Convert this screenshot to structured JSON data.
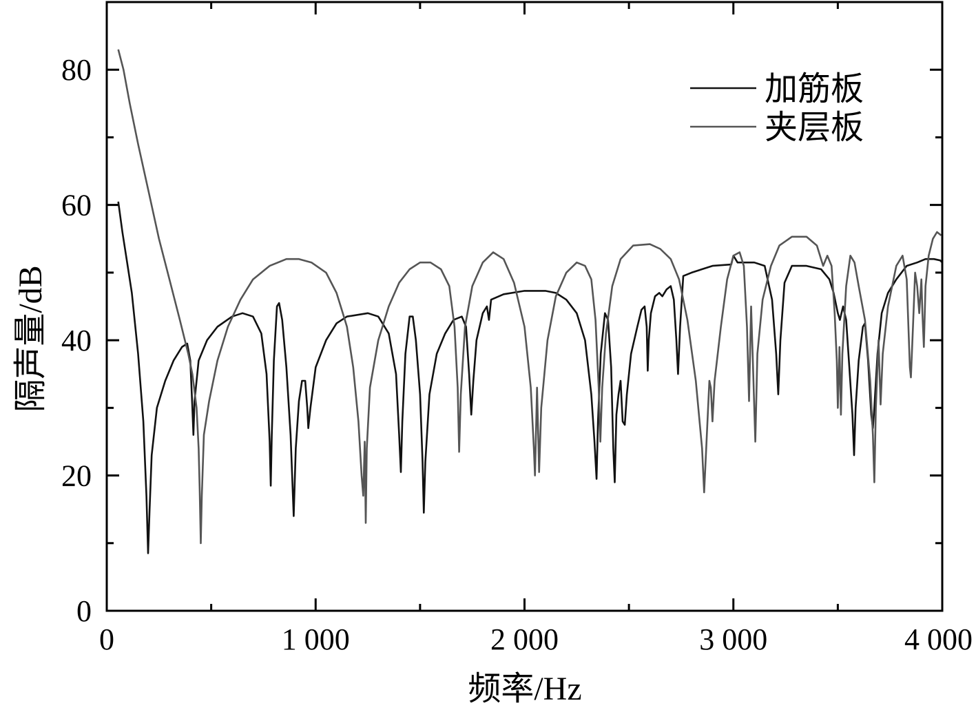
{
  "chart_data": {
    "type": "line",
    "xlabel": "频率/Hz",
    "ylabel": "隔声量/dB",
    "xlim": [
      0,
      4000
    ],
    "ylim": [
      0,
      90
    ],
    "x_ticks": [
      0,
      1000,
      2000,
      3000,
      4000
    ],
    "x_tick_labels": [
      "0",
      "1 000",
      "2 000",
      "3 000",
      "4 000"
    ],
    "y_ticks": [
      0,
      20,
      40,
      60,
      80
    ],
    "y_tick_labels": [
      "0",
      "20",
      "40",
      "60",
      "80"
    ],
    "minor_y_ticks": [
      10,
      30,
      50,
      70
    ],
    "minor_x_ticks": [
      500,
      1500,
      2500,
      3500
    ],
    "grid": false,
    "legend_position": "top-right",
    "series": [
      {
        "name": "加筋板",
        "color": "#111111",
        "points": [
          [
            55,
            60.5
          ],
          [
            75,
            56
          ],
          [
            95,
            52
          ],
          [
            120,
            47
          ],
          [
            150,
            38
          ],
          [
            175,
            28
          ],
          [
            190,
            17
          ],
          [
            198,
            8.5
          ],
          [
            205,
            15
          ],
          [
            215,
            23
          ],
          [
            240,
            30
          ],
          [
            280,
            34
          ],
          [
            320,
            37
          ],
          [
            360,
            39
          ],
          [
            385,
            39.5
          ],
          [
            400,
            37
          ],
          [
            410,
            30
          ],
          [
            415,
            26
          ],
          [
            420,
            31
          ],
          [
            440,
            37
          ],
          [
            480,
            40
          ],
          [
            530,
            42
          ],
          [
            600,
            43.5
          ],
          [
            650,
            44
          ],
          [
            700,
            43.5
          ],
          [
            740,
            41
          ],
          [
            765,
            35
          ],
          [
            780,
            25
          ],
          [
            785,
            18.5
          ],
          [
            790,
            26
          ],
          [
            800,
            37
          ],
          [
            815,
            45
          ],
          [
            825,
            45.5
          ],
          [
            840,
            43
          ],
          [
            860,
            36
          ],
          [
            880,
            26
          ],
          [
            895,
            14
          ],
          [
            905,
            24
          ],
          [
            920,
            31
          ],
          [
            935,
            34
          ],
          [
            950,
            34
          ],
          [
            960,
            30
          ],
          [
            965,
            27
          ],
          [
            975,
            30
          ],
          [
            1000,
            36
          ],
          [
            1050,
            40
          ],
          [
            1100,
            42.5
          ],
          [
            1150,
            43.5
          ],
          [
            1250,
            44
          ],
          [
            1300,
            43.5
          ],
          [
            1350,
            41
          ],
          [
            1385,
            35
          ],
          [
            1400,
            26
          ],
          [
            1408,
            20.5
          ],
          [
            1415,
            28
          ],
          [
            1430,
            38
          ],
          [
            1450,
            43.5
          ],
          [
            1465,
            43.5
          ],
          [
            1480,
            40
          ],
          [
            1500,
            32
          ],
          [
            1512,
            22
          ],
          [
            1518,
            14.5
          ],
          [
            1525,
            22
          ],
          [
            1545,
            32
          ],
          [
            1580,
            38
          ],
          [
            1620,
            41
          ],
          [
            1660,
            43
          ],
          [
            1700,
            43.5
          ],
          [
            1720,
            42
          ],
          [
            1735,
            35
          ],
          [
            1745,
            29
          ],
          [
            1755,
            34
          ],
          [
            1770,
            40
          ],
          [
            1800,
            44
          ],
          [
            1820,
            45
          ],
          [
            1830,
            43
          ],
          [
            1840,
            46
          ],
          [
            1900,
            46.8
          ],
          [
            2000,
            47.3
          ],
          [
            2100,
            47.3
          ],
          [
            2150,
            47
          ],
          [
            2200,
            46
          ],
          [
            2250,
            44
          ],
          [
            2290,
            40
          ],
          [
            2320,
            32
          ],
          [
            2335,
            25
          ],
          [
            2345,
            19.5
          ],
          [
            2352,
            28
          ],
          [
            2365,
            38
          ],
          [
            2385,
            44
          ],
          [
            2400,
            43
          ],
          [
            2415,
            36
          ],
          [
            2425,
            24
          ],
          [
            2432,
            19
          ],
          [
            2440,
            29
          ],
          [
            2450,
            32
          ],
          [
            2460,
            34
          ],
          [
            2470,
            28
          ],
          [
            2480,
            27.5
          ],
          [
            2490,
            32
          ],
          [
            2510,
            38
          ],
          [
            2540,
            42
          ],
          [
            2560,
            44.5
          ],
          [
            2575,
            45
          ],
          [
            2585,
            42
          ],
          [
            2590,
            35.5
          ],
          [
            2595,
            40
          ],
          [
            2605,
            44
          ],
          [
            2625,
            46.5
          ],
          [
            2645,
            47
          ],
          [
            2660,
            46.5
          ],
          [
            2680,
            47.5
          ],
          [
            2700,
            48
          ],
          [
            2715,
            46
          ],
          [
            2727,
            40
          ],
          [
            2735,
            35
          ],
          [
            2745,
            42
          ],
          [
            2760,
            49.5
          ],
          [
            2800,
            50
          ],
          [
            2900,
            51
          ],
          [
            2990,
            51.2
          ],
          [
            3000,
            52.5
          ],
          [
            3020,
            51.5
          ],
          [
            3050,
            51.5
          ],
          [
            3100,
            51.5
          ],
          [
            3150,
            51
          ],
          [
            3185,
            46
          ],
          [
            3205,
            38
          ],
          [
            3215,
            32
          ],
          [
            3225,
            40
          ],
          [
            3245,
            48.5
          ],
          [
            3280,
            51
          ],
          [
            3350,
            51
          ],
          [
            3420,
            50.5
          ],
          [
            3460,
            49
          ],
          [
            3480,
            47
          ],
          [
            3500,
            44
          ],
          [
            3510,
            43
          ],
          [
            3525,
            45
          ],
          [
            3540,
            43
          ],
          [
            3555,
            36
          ],
          [
            3570,
            29
          ],
          [
            3578,
            23
          ],
          [
            3585,
            30
          ],
          [
            3600,
            37
          ],
          [
            3620,
            42
          ],
          [
            3630,
            42.5
          ],
          [
            3645,
            37
          ],
          [
            3660,
            29
          ],
          [
            3668,
            27
          ],
          [
            3675,
            30
          ],
          [
            3690,
            38
          ],
          [
            3710,
            44
          ],
          [
            3740,
            47
          ],
          [
            3780,
            49
          ],
          [
            3830,
            51
          ],
          [
            3880,
            51.5
          ],
          [
            3920,
            52
          ],
          [
            3960,
            52
          ],
          [
            3990,
            51.8
          ],
          [
            4000,
            51.5
          ]
        ]
      },
      {
        "name": "夹层板",
        "color": "#555555",
        "points": [
          [
            55,
            83
          ],
          [
            80,
            80
          ],
          [
            110,
            75
          ],
          [
            150,
            69
          ],
          [
            200,
            62
          ],
          [
            250,
            55
          ],
          [
            300,
            49
          ],
          [
            350,
            43
          ],
          [
            390,
            38
          ],
          [
            410,
            35
          ],
          [
            430,
            30
          ],
          [
            440,
            24
          ],
          [
            445,
            18
          ],
          [
            450,
            10
          ],
          [
            455,
            17
          ],
          [
            465,
            26
          ],
          [
            490,
            31
          ],
          [
            530,
            37
          ],
          [
            580,
            42
          ],
          [
            640,
            46
          ],
          [
            700,
            49
          ],
          [
            780,
            51
          ],
          [
            860,
            52
          ],
          [
            920,
            52
          ],
          [
            980,
            51.5
          ],
          [
            1050,
            50
          ],
          [
            1100,
            47
          ],
          [
            1130,
            44
          ],
          [
            1150,
            42
          ],
          [
            1180,
            36
          ],
          [
            1205,
            28
          ],
          [
            1220,
            20
          ],
          [
            1228,
            17
          ],
          [
            1235,
            25
          ],
          [
            1240,
            13
          ],
          [
            1245,
            24
          ],
          [
            1260,
            33
          ],
          [
            1300,
            40
          ],
          [
            1350,
            45
          ],
          [
            1400,
            48.5
          ],
          [
            1450,
            50.5
          ],
          [
            1500,
            51.5
          ],
          [
            1550,
            51.5
          ],
          [
            1600,
            50.5
          ],
          [
            1640,
            48
          ],
          [
            1665,
            42
          ],
          [
            1680,
            33
          ],
          [
            1687,
            23.5
          ],
          [
            1695,
            32
          ],
          [
            1715,
            42
          ],
          [
            1750,
            48
          ],
          [
            1800,
            51.5
          ],
          [
            1850,
            53
          ],
          [
            1900,
            52
          ],
          [
            1950,
            48.5
          ],
          [
            2000,
            42
          ],
          [
            2030,
            33
          ],
          [
            2045,
            24
          ],
          [
            2050,
            20
          ],
          [
            2060,
            33
          ],
          [
            2070,
            20.5
          ],
          [
            2080,
            30
          ],
          [
            2110,
            40
          ],
          [
            2150,
            46.5
          ],
          [
            2200,
            50
          ],
          [
            2250,
            51.5
          ],
          [
            2290,
            51
          ],
          [
            2320,
            49
          ],
          [
            2340,
            43
          ],
          [
            2355,
            33
          ],
          [
            2363,
            25
          ],
          [
            2372,
            33
          ],
          [
            2390,
            41
          ],
          [
            2420,
            48
          ],
          [
            2460,
            52
          ],
          [
            2520,
            54
          ],
          [
            2600,
            54.2
          ],
          [
            2650,
            53.5
          ],
          [
            2700,
            52
          ],
          [
            2740,
            49
          ],
          [
            2780,
            43
          ],
          [
            2820,
            34
          ],
          [
            2850,
            24
          ],
          [
            2860,
            17.5
          ],
          [
            2870,
            24
          ],
          [
            2885,
            34
          ],
          [
            2892,
            33
          ],
          [
            2900,
            28
          ],
          [
            2910,
            34
          ],
          [
            2940,
            42
          ],
          [
            2970,
            49
          ],
          [
            3000,
            52.5
          ],
          [
            3030,
            53
          ],
          [
            3050,
            51
          ],
          [
            3065,
            42
          ],
          [
            3075,
            31
          ],
          [
            3085,
            45
          ],
          [
            3095,
            35
          ],
          [
            3105,
            25
          ],
          [
            3115,
            38
          ],
          [
            3140,
            46
          ],
          [
            3180,
            51
          ],
          [
            3220,
            54
          ],
          [
            3280,
            55.3
          ],
          [
            3350,
            55.3
          ],
          [
            3400,
            54
          ],
          [
            3430,
            51
          ],
          [
            3450,
            52.5
          ],
          [
            3470,
            51
          ],
          [
            3485,
            44
          ],
          [
            3495,
            37
          ],
          [
            3500,
            30
          ],
          [
            3508,
            39
          ],
          [
            3515,
            29
          ],
          [
            3522,
            38
          ],
          [
            3540,
            48
          ],
          [
            3560,
            52.5
          ],
          [
            3580,
            51.5
          ],
          [
            3600,
            48
          ],
          [
            3630,
            43
          ],
          [
            3655,
            34
          ],
          [
            3668,
            26
          ],
          [
            3675,
            19
          ],
          [
            3682,
            30
          ],
          [
            3695,
            40
          ],
          [
            3705,
            30.5
          ],
          [
            3715,
            38
          ],
          [
            3740,
            45
          ],
          [
            3780,
            51
          ],
          [
            3810,
            52.5
          ],
          [
            3830,
            49
          ],
          [
            3845,
            36
          ],
          [
            3850,
            34.5
          ],
          [
            3860,
            42
          ],
          [
            3870,
            50
          ],
          [
            3880,
            48
          ],
          [
            3890,
            44
          ],
          [
            3900,
            49
          ],
          [
            3905,
            44
          ],
          [
            3912,
            39
          ],
          [
            3920,
            48
          ],
          [
            3935,
            52.5
          ],
          [
            3955,
            55
          ],
          [
            3975,
            56
          ],
          [
            3995,
            55.5
          ]
        ]
      }
    ]
  }
}
